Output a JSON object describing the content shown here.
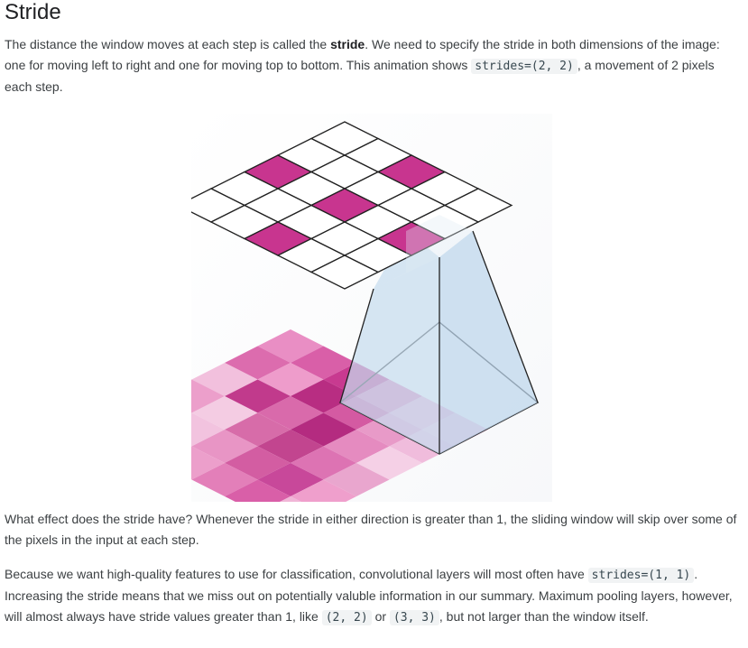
{
  "heading": "Stride",
  "p1": {
    "before": "The distance the window moves at each step is called the ",
    "bold": "stride",
    "after": ". We need to specify the stride in both dimensions of the image: one for moving left to right and one for moving top to bottom. This animation shows ",
    "code": "strides=(2, 2)",
    "end": ", a movement of 2 pixels each step."
  },
  "p2": "What effect does the stride have? Whenever the stride in either direction is greater than 1, the sliding window will skip over some of the pixels in the input at each step.",
  "p3": {
    "t1": "Because we want high-quality features to use for classification, convolutional layers will most often have ",
    "code1": "strides=(1, 1)",
    "t2": ". Increasing the stride means that we miss out on potentially valuble information in our summary. Maximum pooling layers, however, will almost always have stride values greater than 1, like ",
    "code2": "(2, 2)",
    "t3": " or ",
    "code3": "(3, 3)",
    "t4": ", but not larger than the window itself."
  },
  "figure": {
    "output_grid": {
      "size": 5,
      "highlighted": [
        [
          0,
          2
        ],
        [
          2,
          0
        ],
        [
          2,
          2
        ],
        [
          2,
          4
        ],
        [
          4,
          2
        ]
      ]
    },
    "input_grid": {
      "size": 6
    },
    "colors": {
      "magenta": "#c8358f",
      "frustum": "#c6dcef",
      "grid_line": "#222222"
    }
  }
}
